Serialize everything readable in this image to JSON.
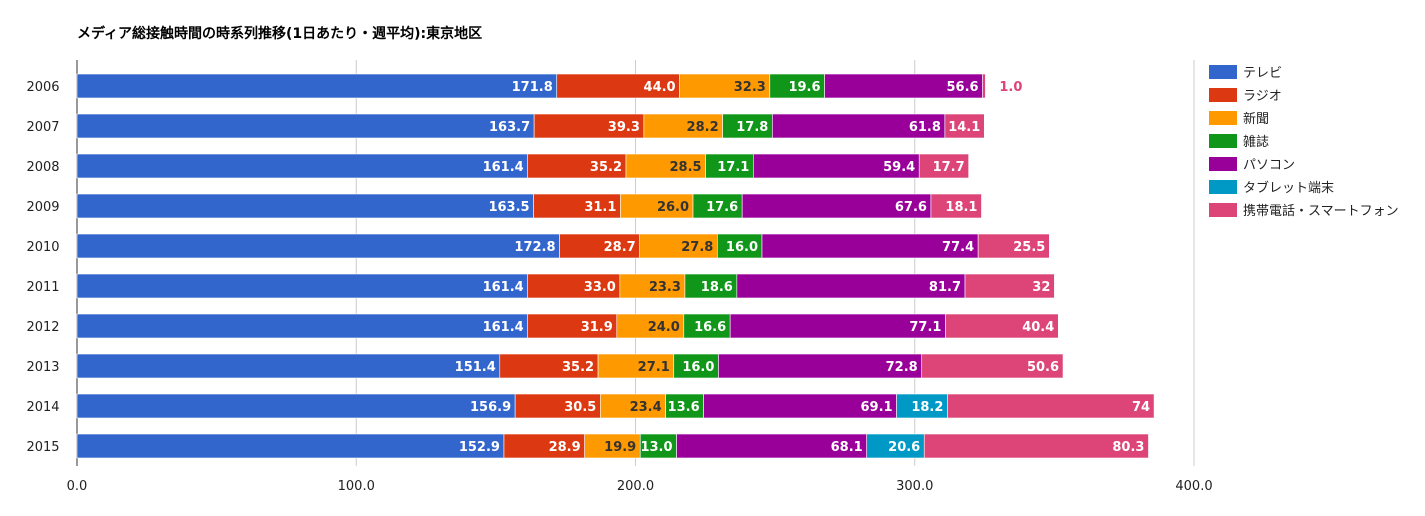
{
  "chart_data": {
    "type": "bar",
    "orientation": "horizontal",
    "stacked": true,
    "title": "メディア総接触時間の時系列推移(1日あたり・週平均):東京地区",
    "xlabel": "",
    "ylabel": "",
    "xlim": [
      0,
      400
    ],
    "x_ticks": [
      "0.0",
      "100.0",
      "200.0",
      "300.0",
      "400.0"
    ],
    "x_tick_values": [
      0,
      100,
      200,
      300,
      400
    ],
    "grid": true,
    "legend_position": "right",
    "categories": [
      "2006",
      "2007",
      "2008",
      "2009",
      "2010",
      "2011",
      "2012",
      "2013",
      "2014",
      "2015"
    ],
    "series": [
      {
        "name": "テレビ",
        "color": "#3366cc",
        "label_color": "#ffffff",
        "values": [
          171.8,
          163.7,
          161.4,
          163.5,
          172.8,
          161.4,
          161.4,
          151.4,
          156.9,
          152.9
        ],
        "labels": [
          "171.8",
          "163.7",
          "161.4",
          "163.5",
          "172.8",
          "161.4",
          "161.4",
          "151.4",
          "156.9",
          "152.9"
        ]
      },
      {
        "name": "ラジオ",
        "color": "#dc3912",
        "label_color": "#ffffff",
        "values": [
          44.0,
          39.3,
          35.2,
          31.1,
          28.7,
          33.0,
          31.9,
          35.2,
          30.5,
          28.9
        ],
        "labels": [
          "44.0",
          "39.3",
          "35.2",
          "31.1",
          "28.7",
          "33.0",
          "31.9",
          "35.2",
          "30.5",
          "28.9"
        ]
      },
      {
        "name": "新聞",
        "color": "#ff9900",
        "label_color": "#333333",
        "values": [
          32.3,
          28.2,
          28.5,
          26.0,
          27.8,
          23.3,
          24.0,
          27.1,
          23.4,
          19.9
        ],
        "labels": [
          "32.3",
          "28.2",
          "28.5",
          "26.0",
          "27.8",
          "23.3",
          "24.0",
          "27.1",
          "23.4",
          "19.9"
        ]
      },
      {
        "name": "雑誌",
        "color": "#109618",
        "label_color": "#ffffff",
        "values": [
          19.6,
          17.8,
          17.1,
          17.6,
          16.0,
          18.6,
          16.6,
          16.0,
          13.6,
          13.0
        ],
        "labels": [
          "19.6",
          "17.8",
          "17.1",
          "17.6",
          "16.0",
          "18.6",
          "16.6",
          "16.0",
          "13.6",
          "13.0"
        ]
      },
      {
        "name": "パソコン",
        "color": "#990099",
        "label_color": "#ffffff",
        "values": [
          56.6,
          61.8,
          59.4,
          67.6,
          77.4,
          81.7,
          77.1,
          72.8,
          69.1,
          68.1
        ],
        "labels": [
          "56.6",
          "61.8",
          "59.4",
          "67.6",
          "77.4",
          "81.7",
          "77.1",
          "72.8",
          "69.1",
          "68.1"
        ]
      },
      {
        "name": "タブレット端末",
        "color": "#0099c6",
        "label_color": "#ffffff",
        "values": [
          0,
          0,
          0,
          0,
          0,
          0,
          0,
          0,
          18.2,
          20.6
        ],
        "labels": [
          "",
          "",
          "",
          "",
          "",
          "",
          "",
          "",
          "18.2",
          "20.6"
        ]
      },
      {
        "name": "携帯電話・スマートフォン",
        "color": "#dd4477",
        "label_color": "#ffffff",
        "values": [
          1.0,
          14.1,
          17.7,
          18.1,
          25.5,
          32,
          40.4,
          50.6,
          74,
          80.3
        ],
        "labels": [
          "1.0",
          "14.1",
          "17.7",
          "18.1",
          "25.5",
          "32",
          "40.4",
          "50.6",
          "74",
          "80.3"
        ]
      }
    ]
  }
}
